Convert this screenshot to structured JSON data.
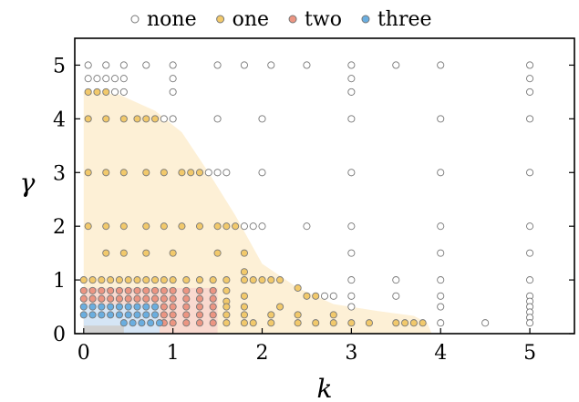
{
  "chart_data": {
    "type": "scatter",
    "xlabel": "k",
    "ylabel": "γ",
    "xlim": [
      -0.1,
      5.5
    ],
    "ylim": [
      0,
      5.5
    ],
    "xticks": [
      {
        "value": 0,
        "label": "0"
      },
      {
        "value": 1,
        "label": "1"
      },
      {
        "value": 2,
        "label": "2"
      },
      {
        "value": 3,
        "label": "3"
      },
      {
        "value": 4,
        "label": "4"
      },
      {
        "value": 5,
        "label": "5"
      }
    ],
    "yticks": [
      {
        "value": 0,
        "label": "0"
      },
      {
        "value": 1,
        "label": "1"
      },
      {
        "value": 2,
        "label": "2"
      },
      {
        "value": 3,
        "label": "3"
      },
      {
        "value": 4,
        "label": "4"
      },
      {
        "value": 5,
        "label": "5"
      }
    ],
    "legend": {
      "placement": "top-center",
      "entries": [
        {
          "key": "none",
          "label": "none"
        },
        {
          "key": "one",
          "label": "one"
        },
        {
          "key": "two",
          "label": "two"
        },
        {
          "key": "three",
          "label": "three"
        }
      ]
    },
    "colors": {
      "none_fill": "#ffffff",
      "one_fill": "#f2c96b",
      "two_fill": "#ec9582",
      "three_fill": "#6aaee0",
      "marker_edge": "#777777",
      "region_one": "#fdf0d6",
      "region_two": "#f9d9cf",
      "region_three": "#d5e5f5",
      "region_zero": "#d0d0d0"
    },
    "regions": {
      "one_boundary": [
        [
          0,
          4.5
        ],
        [
          0.4,
          4.45
        ],
        [
          0.8,
          4.15
        ],
        [
          1.1,
          3.75
        ],
        [
          1.4,
          3.0
        ],
        [
          1.7,
          2.2
        ],
        [
          2.0,
          1.3
        ],
        [
          2.4,
          0.85
        ],
        [
          2.8,
          0.55
        ],
        [
          3.3,
          0.42
        ],
        [
          3.7,
          0.33
        ],
        [
          3.85,
          0.2
        ],
        [
          3.9,
          0.0
        ]
      ],
      "two_rect": {
        "x0": 0,
        "x1": 1.5,
        "y0": 0,
        "y1": 0.85
      },
      "three_rect": {
        "x0": 0,
        "x1": 0.85,
        "y0": 0,
        "y1": 0.55
      },
      "zero_rect": {
        "x0": 0,
        "x1": 0.45,
        "y0": 0,
        "y1": 0.15
      }
    },
    "series": [
      {
        "name": "none",
        "points": [
          [
            0.05,
            5
          ],
          [
            0.25,
            5
          ],
          [
            0.45,
            5
          ],
          [
            0.7,
            5
          ],
          [
            1,
            5
          ],
          [
            1.5,
            5
          ],
          [
            1.8,
            5
          ],
          [
            2.1,
            5
          ],
          [
            2.5,
            5
          ],
          [
            3,
            5
          ],
          [
            3.5,
            5
          ],
          [
            4,
            5
          ],
          [
            5,
            5
          ],
          [
            0.05,
            4.75
          ],
          [
            0.15,
            4.75
          ],
          [
            0.25,
            4.75
          ],
          [
            0.35,
            4.75
          ],
          [
            0.45,
            4.75
          ],
          [
            1,
            4.75
          ],
          [
            3,
            4.75
          ],
          [
            5,
            4.75
          ],
          [
            0.35,
            4.5
          ],
          [
            0.45,
            4.5
          ],
          [
            1,
            4.5
          ],
          [
            3,
            4.5
          ],
          [
            5,
            4.5
          ],
          [
            0.9,
            4
          ],
          [
            1,
            4
          ],
          [
            1.5,
            4
          ],
          [
            2,
            4
          ],
          [
            3,
            4
          ],
          [
            4,
            4
          ],
          [
            5,
            4
          ],
          [
            1.4,
            3
          ],
          [
            1.5,
            3
          ],
          [
            1.6,
            3
          ],
          [
            2,
            3
          ],
          [
            3,
            3
          ],
          [
            4,
            3
          ],
          [
            5,
            3
          ],
          [
            1.8,
            2
          ],
          [
            1.9,
            2
          ],
          [
            2,
            2
          ],
          [
            2.5,
            2
          ],
          [
            3,
            2
          ],
          [
            4,
            2
          ],
          [
            5,
            2
          ],
          [
            3,
            1.5
          ],
          [
            4,
            1.5
          ],
          [
            5,
            1.5
          ],
          [
            3,
            1
          ],
          [
            3.5,
            1
          ],
          [
            4,
            1
          ],
          [
            5,
            1
          ],
          [
            2.7,
            0.7
          ],
          [
            2.8,
            0.7
          ],
          [
            3,
            0.7
          ],
          [
            3.5,
            0.7
          ],
          [
            4,
            0.7
          ],
          [
            5,
            0.7
          ],
          [
            3,
            0.5
          ],
          [
            4,
            0.5
          ],
          [
            5,
            0.6
          ],
          [
            5,
            0.5
          ],
          [
            5,
            0.4
          ],
          [
            5,
            0.3
          ],
          [
            5,
            0.2
          ],
          [
            4,
            0.2
          ],
          [
            4.5,
            0.2
          ]
        ]
      },
      {
        "name": "one",
        "points": [
          [
            0.05,
            4.5
          ],
          [
            0.15,
            4.5
          ],
          [
            0.25,
            4.5
          ],
          [
            0.05,
            4
          ],
          [
            0.25,
            4
          ],
          [
            0.45,
            4
          ],
          [
            0.6,
            4
          ],
          [
            0.7,
            4
          ],
          [
            0.8,
            4
          ],
          [
            0.05,
            3
          ],
          [
            0.25,
            3
          ],
          [
            0.45,
            3
          ],
          [
            0.7,
            3
          ],
          [
            0.9,
            3
          ],
          [
            1.1,
            3
          ],
          [
            1.2,
            3
          ],
          [
            1.3,
            3
          ],
          [
            0.05,
            2
          ],
          [
            0.25,
            2
          ],
          [
            0.45,
            2
          ],
          [
            0.7,
            2
          ],
          [
            0.9,
            2
          ],
          [
            1.1,
            2
          ],
          [
            1.3,
            2
          ],
          [
            1.5,
            2
          ],
          [
            1.6,
            2
          ],
          [
            1.7,
            2
          ],
          [
            0.25,
            1.5
          ],
          [
            0.45,
            1.5
          ],
          [
            0.7,
            1.5
          ],
          [
            1,
            1.5
          ],
          [
            1.5,
            1.5
          ],
          [
            1.8,
            1.5
          ],
          [
            0,
            1
          ],
          [
            0.1,
            1
          ],
          [
            0.2,
            1
          ],
          [
            0.3,
            1
          ],
          [
            0.4,
            1
          ],
          [
            0.5,
            1
          ],
          [
            0.6,
            1
          ],
          [
            0.7,
            1
          ],
          [
            0.8,
            1
          ],
          [
            0.9,
            1
          ],
          [
            1,
            1
          ],
          [
            1.15,
            1
          ],
          [
            1.3,
            1
          ],
          [
            1.45,
            1
          ],
          [
            1.6,
            1
          ],
          [
            1.8,
            1
          ],
          [
            1.9,
            1
          ],
          [
            2,
            1
          ],
          [
            2.1,
            1
          ],
          [
            1.8,
            1.15
          ],
          [
            2.2,
            1.0
          ],
          [
            2.4,
            0.85
          ],
          [
            2.5,
            0.7
          ],
          [
            2.6,
            0.7
          ],
          [
            1.6,
            0.8
          ],
          [
            1.6,
            0.6
          ],
          [
            1.6,
            0.5
          ],
          [
            1.6,
            0.35
          ],
          [
            1.6,
            0.2
          ],
          [
            1.8,
            0.7
          ],
          [
            1.8,
            0.5
          ],
          [
            1.8,
            0.35
          ],
          [
            1.8,
            0.2
          ],
          [
            1.9,
            0.2
          ],
          [
            2.1,
            0.35
          ],
          [
            2.1,
            0.2
          ],
          [
            2.2,
            0.5
          ],
          [
            2.4,
            0.35
          ],
          [
            2.4,
            0.2
          ],
          [
            2.6,
            0.2
          ],
          [
            2.8,
            0.35
          ],
          [
            2.8,
            0.2
          ],
          [
            3.0,
            0.2
          ],
          [
            3.2,
            0.2
          ],
          [
            3.5,
            0.2
          ],
          [
            3.6,
            0.2
          ],
          [
            3.7,
            0.2
          ],
          [
            3.8,
            0.2
          ]
        ]
      },
      {
        "name": "two",
        "points": [
          [
            0,
            0.8
          ],
          [
            0.1,
            0.8
          ],
          [
            0.2,
            0.8
          ],
          [
            0.3,
            0.8
          ],
          [
            0.4,
            0.8
          ],
          [
            0.5,
            0.8
          ],
          [
            0.6,
            0.8
          ],
          [
            0.7,
            0.8
          ],
          [
            0.8,
            0.8
          ],
          [
            0.9,
            0.8
          ],
          [
            1,
            0.8
          ],
          [
            1.15,
            0.8
          ],
          [
            1.3,
            0.8
          ],
          [
            1.45,
            0.8
          ],
          [
            0,
            0.65
          ],
          [
            0.1,
            0.65
          ],
          [
            0.2,
            0.65
          ],
          [
            0.3,
            0.65
          ],
          [
            0.4,
            0.65
          ],
          [
            0.5,
            0.65
          ],
          [
            0.6,
            0.65
          ],
          [
            0.7,
            0.65
          ],
          [
            0.8,
            0.65
          ],
          [
            0.9,
            0.65
          ],
          [
            1,
            0.65
          ],
          [
            1.15,
            0.65
          ],
          [
            1.3,
            0.65
          ],
          [
            1.45,
            0.65
          ],
          [
            0.9,
            0.5
          ],
          [
            1,
            0.5
          ],
          [
            1.15,
            0.5
          ],
          [
            1.3,
            0.5
          ],
          [
            1.45,
            0.5
          ],
          [
            0.9,
            0.35
          ],
          [
            1,
            0.35
          ],
          [
            1.15,
            0.35
          ],
          [
            1.3,
            0.35
          ],
          [
            1.45,
            0.35
          ],
          [
            0.9,
            0.2
          ],
          [
            1,
            0.2
          ],
          [
            1.15,
            0.2
          ],
          [
            1.3,
            0.2
          ],
          [
            1.45,
            0.2
          ]
        ]
      },
      {
        "name": "three",
        "points": [
          [
            0,
            0.5
          ],
          [
            0.1,
            0.5
          ],
          [
            0.2,
            0.5
          ],
          [
            0.3,
            0.5
          ],
          [
            0.4,
            0.5
          ],
          [
            0.5,
            0.5
          ],
          [
            0.6,
            0.5
          ],
          [
            0.7,
            0.5
          ],
          [
            0.8,
            0.5
          ],
          [
            0,
            0.35
          ],
          [
            0.1,
            0.35
          ],
          [
            0.2,
            0.35
          ],
          [
            0.3,
            0.35
          ],
          [
            0.4,
            0.35
          ],
          [
            0.5,
            0.35
          ],
          [
            0.6,
            0.35
          ],
          [
            0.7,
            0.35
          ],
          [
            0.8,
            0.35
          ],
          [
            0.45,
            0.2
          ],
          [
            0.55,
            0.2
          ],
          [
            0.65,
            0.2
          ],
          [
            0.75,
            0.2
          ],
          [
            0.85,
            0.2
          ]
        ]
      }
    ]
  }
}
